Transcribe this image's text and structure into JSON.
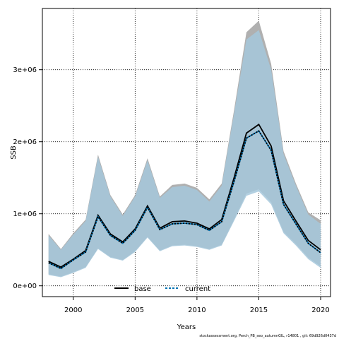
{
  "chart_data": {
    "type": "line",
    "xlabel": "Years",
    "ylabel": "SSB",
    "xlim": [
      1997.5,
      2020.8
    ],
    "ylim": [
      -150000,
      3850000
    ],
    "x_ticks": [
      2000,
      2005,
      2010,
      2015,
      2020
    ],
    "x_tick_labels": [
      "2000",
      "2005",
      "2010",
      "2015",
      "2020"
    ],
    "y_ticks": [
      0,
      1000000,
      2000000,
      3000000
    ],
    "y_tick_labels": [
      "0e+00",
      "1e+06",
      "2e+06",
      "3e+06"
    ],
    "grid": true,
    "legend_position": "bottom-center",
    "series": [
      {
        "name": "base",
        "color": "#000000",
        "style": "solid",
        "band_color": "#b0b0b0",
        "x": [
          1998,
          1999,
          2000,
          2001,
          2002,
          2003,
          2004,
          2005,
          2006,
          2007,
          2008,
          2009,
          2010,
          2011,
          2012,
          2013,
          2014,
          2015,
          2016,
          2017,
          2018,
          2019,
          2020
        ],
        "values": [
          340000,
          260000,
          370000,
          490000,
          980000,
          720000,
          610000,
          790000,
          1110000,
          800000,
          890000,
          900000,
          870000,
          790000,
          920000,
          1500000,
          2120000,
          2240000,
          1940000,
          1180000,
          900000,
          630000,
          500000
        ],
        "lower": [
          160000,
          130000,
          190000,
          260000,
          520000,
          400000,
          360000,
          480000,
          680000,
          490000,
          560000,
          570000,
          550000,
          510000,
          570000,
          920000,
          1280000,
          1340000,
          1160000,
          750000,
          580000,
          390000,
          270000
        ],
        "upper": [
          720000,
          510000,
          730000,
          920000,
          1820000,
          1260000,
          990000,
          1260000,
          1770000,
          1240000,
          1400000,
          1420000,
          1360000,
          1200000,
          1420000,
          2440000,
          3520000,
          3680000,
          3080000,
          1870000,
          1420000,
          1020000,
          910000
        ]
      },
      {
        "name": "current",
        "color": "#0072b2",
        "style": "dashed",
        "band_color": "#a6c8dc",
        "x": [
          1998,
          1999,
          2000,
          2001,
          2002,
          2003,
          2004,
          2005,
          2006,
          2007,
          2008,
          2009,
          2010,
          2011,
          2012,
          2013,
          2014,
          2015,
          2016,
          2017,
          2018,
          2019,
          2020
        ],
        "values": [
          320000,
          240000,
          360000,
          470000,
          960000,
          700000,
          590000,
          770000,
          1090000,
          780000,
          860000,
          870000,
          850000,
          770000,
          890000,
          1450000,
          2050000,
          2150000,
          1880000,
          1130000,
          860000,
          590000,
          460000
        ],
        "lower": [
          150000,
          120000,
          180000,
          250000,
          510000,
          390000,
          350000,
          470000,
          670000,
          480000,
          550000,
          560000,
          540000,
          500000,
          560000,
          900000,
          1250000,
          1310000,
          1130000,
          730000,
          560000,
          370000,
          250000
        ],
        "upper": [
          700000,
          500000,
          710000,
          900000,
          1790000,
          1240000,
          970000,
          1240000,
          1740000,
          1220000,
          1370000,
          1390000,
          1330000,
          1170000,
          1390000,
          2390000,
          3420000,
          3550000,
          3000000,
          1830000,
          1390000,
          990000,
          860000
        ]
      }
    ]
  },
  "footer": "stockassessment.org, Perch_PB_seo_autumnGIL, r14801 , git: 69d926d0437d"
}
